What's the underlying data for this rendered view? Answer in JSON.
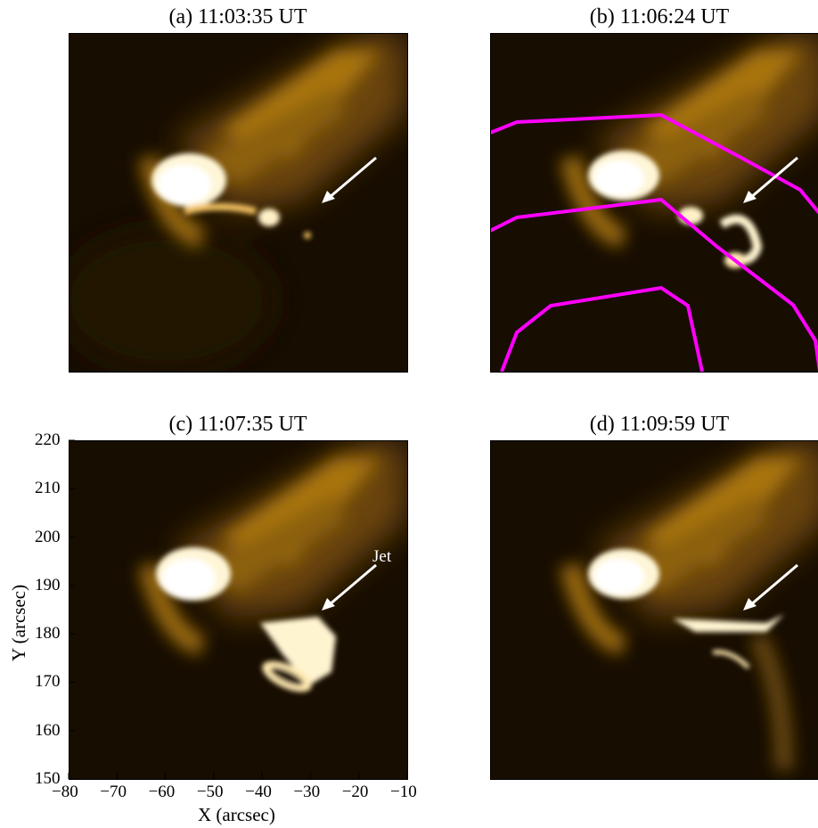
{
  "figure": {
    "panels": [
      {
        "id": "a",
        "title": "(a) 11:03:35 UT"
      },
      {
        "id": "b",
        "title": "(b) 11:06:24 UT"
      },
      {
        "id": "c",
        "title": "(c) 11:07:35 UT"
      },
      {
        "id": "d",
        "title": "(d) 11:09:59 UT"
      }
    ],
    "annotation_jet": "Jet",
    "x_axis": {
      "label": "X (arcsec)",
      "ticks": [
        "−80",
        "−70",
        "−60",
        "−50",
        "−40",
        "−30",
        "−20",
        "−10"
      ],
      "range": [
        -80,
        -10
      ]
    },
    "y_axis": {
      "label": "Y (arcsec)",
      "ticks": [
        "150",
        "160",
        "170",
        "180",
        "190",
        "200",
        "210",
        "220"
      ],
      "range": [
        150,
        220
      ]
    },
    "colors": {
      "image_dark": "#170d00",
      "image_mid": "#c08a1a",
      "image_bright": "#fff8e0",
      "contour": "#ff00ff",
      "arrow": "#ffffff"
    }
  }
}
